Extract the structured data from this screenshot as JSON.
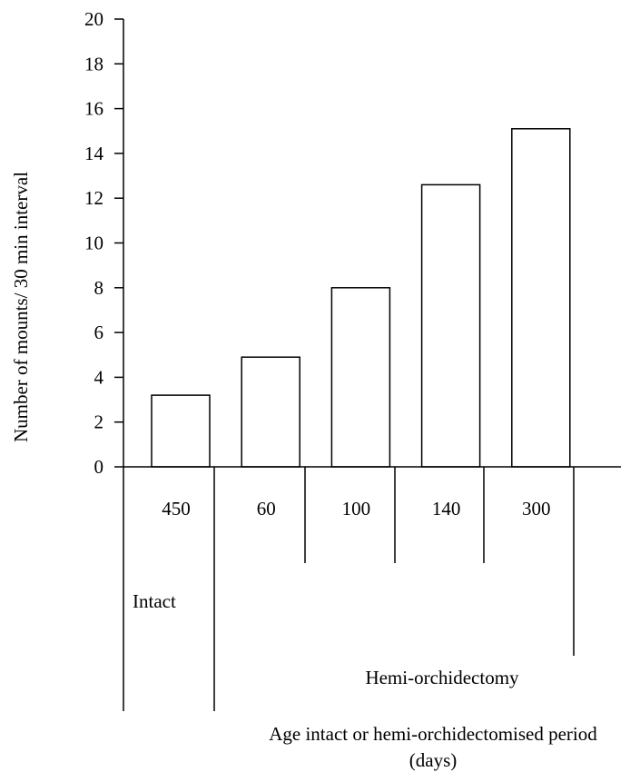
{
  "chart_data": {
    "type": "bar",
    "categories": [
      "450",
      "60",
      "100",
      "140",
      "300"
    ],
    "values": [
      3.2,
      4.9,
      8.0,
      12.6,
      15.1
    ],
    "ylabel": "Number of mounts/ 30 min interval",
    "xlabel_line1": "Age intact or hemi-orchidectomised period",
    "xlabel_line2": "(days)",
    "ylim": [
      0,
      20
    ],
    "yticks": [
      "0",
      "2",
      "4",
      "6",
      "8",
      "10",
      "12",
      "14",
      "16",
      "18",
      "20"
    ],
    "groups": [
      {
        "label": "Intact",
        "categories": [
          "450"
        ]
      },
      {
        "label": "Hemi-orchidectomy",
        "categories": [
          "60",
          "100",
          "140",
          "300"
        ]
      }
    ],
    "grid": false,
    "bar_fill": "#ffffff",
    "bar_stroke": "#000000"
  }
}
